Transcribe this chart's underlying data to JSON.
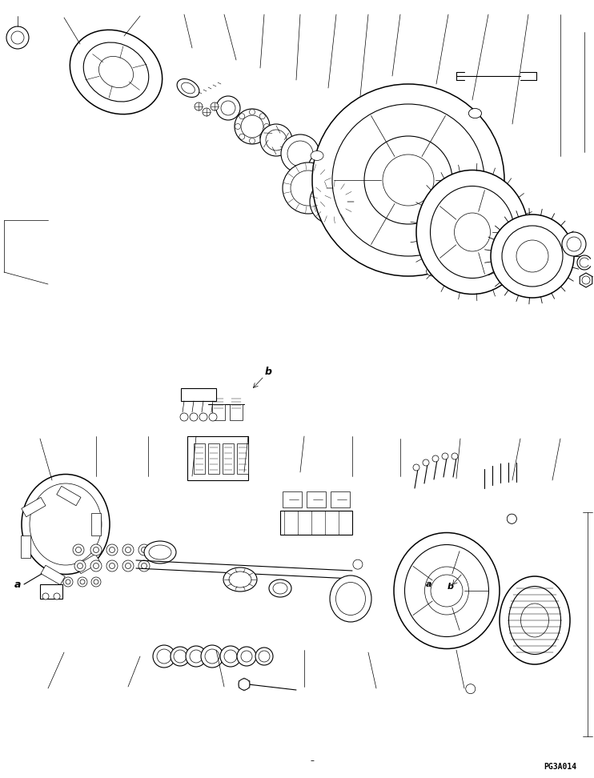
{
  "bg_color": "#ffffff",
  "line_color": "#000000",
  "page_id": "PG3A014",
  "label_a1": "a",
  "label_b1": "b",
  "label_a2": "a",
  "label_b2": "b",
  "figsize": [
    7.42,
    9.72
  ],
  "dpi": 100
}
